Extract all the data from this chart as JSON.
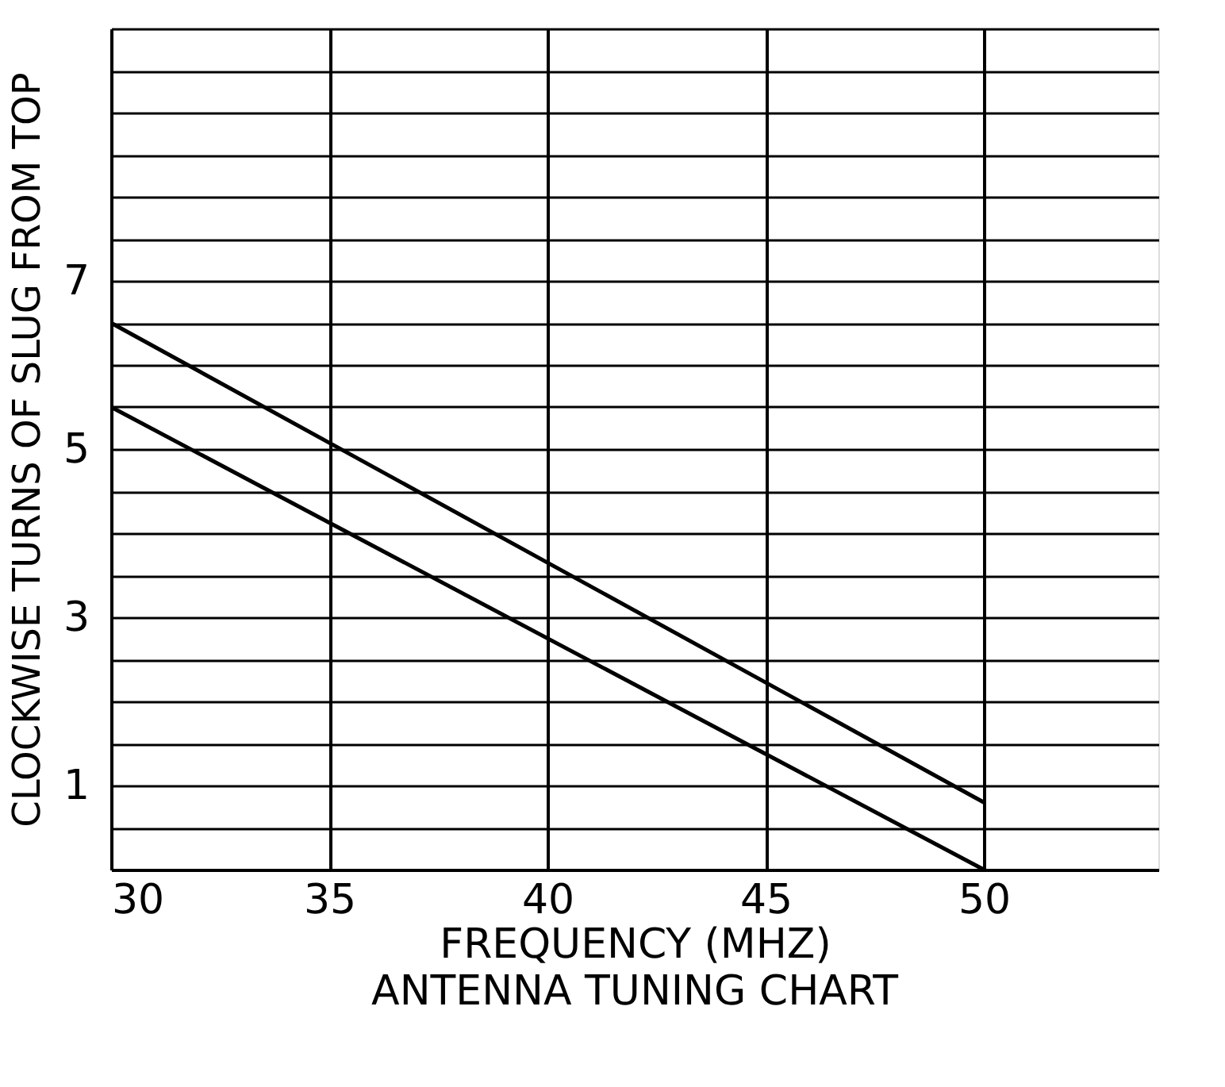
{
  "chart_data": {
    "type": "line",
    "title": "ANTENNA TUNING CHART",
    "xlabel": "FREQUENCY (MHZ)",
    "ylabel": "CLOCKWISE TURNS OF SLUG FROM TOP",
    "series": [
      {
        "color": "#000000",
        "values": [
          6.5,
          0.8
        ]
      },
      {
        "color": "#000000",
        "values": [
          5.5,
          0
        ]
      }
    ],
    "x": [
      30,
      50
    ],
    "xlim": [
      30,
      54
    ],
    "xticks": [
      30,
      35,
      40,
      45,
      50
    ],
    "ylim": [
      0,
      10
    ],
    "yticks": [
      {
        "value": 0,
        "label": null
      },
      {
        "value": 0.5,
        "label": null
      },
      1,
      {
        "value": 1.5,
        "label": null
      },
      {
        "value": 2,
        "label": null
      },
      {
        "value": 2.5,
        "label": null
      },
      3,
      {
        "value": 3.5,
        "label": null
      },
      {
        "value": 4,
        "label": null
      },
      {
        "value": 4.5,
        "label": null
      },
      5,
      {
        "value": 5.5,
        "label": null
      },
      {
        "value": 6,
        "label": null
      },
      {
        "value": 6.5,
        "label": null
      },
      7,
      {
        "value": 7.5,
        "label": null
      },
      {
        "value": 8,
        "label": null
      },
      {
        "value": 8.5,
        "label": null
      },
      {
        "value": 9,
        "label": null
      },
      {
        "value": 9.5,
        "label": null
      },
      {
        "value": 10,
        "label": null
      }
    ],
    "grid": true,
    "legend": false,
    "marker": "none",
    "line_style": "solid"
  }
}
